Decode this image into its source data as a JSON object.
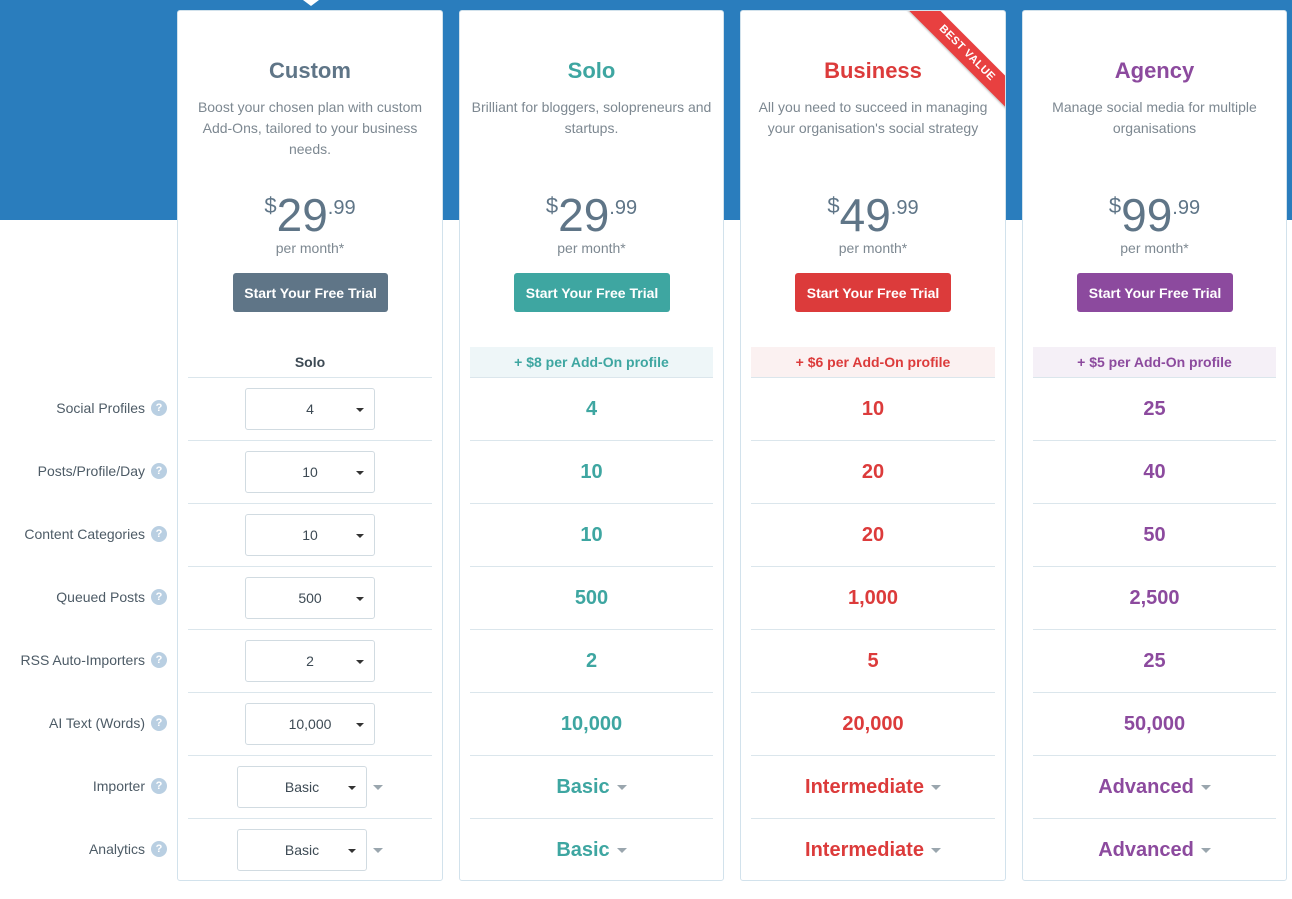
{
  "colors": {
    "band": "#2a7dbd",
    "custom": "#5f7587",
    "solo": "#3ea6a1",
    "business": "#dc3b3b",
    "agency": "#8c4a9e"
  },
  "feature_labels": [
    "Social Profiles",
    "Posts/Profile/Day",
    "Content Categories",
    "Queued Posts",
    "RSS Auto-Importers",
    "AI Text (Words)",
    "Importer",
    "Analytics"
  ],
  "help_icon_text": "?",
  "cta_label": "Start Your Free Trial",
  "per_month": "per month*",
  "currency": "$",
  "ribbon": "BEST VALUE",
  "plans": {
    "custom": {
      "name": "Custom",
      "desc": "Boost your chosen plan with custom Add-Ons, tailored to your business needs.",
      "price": "29",
      "cents": ".99",
      "base_plan": "Solo",
      "selects": [
        "4",
        "10",
        "10",
        "500",
        "2",
        "10,000",
        "Basic",
        "Basic"
      ]
    },
    "solo": {
      "name": "Solo",
      "desc": "Brilliant for bloggers, solopreneurs and startups.",
      "price": "29",
      "cents": ".99",
      "addon": "+ $8 per Add-On profile",
      "values": [
        "4",
        "10",
        "10",
        "500",
        "2",
        "10,000",
        "Basic",
        "Basic"
      ]
    },
    "business": {
      "name": "Business",
      "desc": "All you need to succeed in managing your organisation's social strategy",
      "price": "49",
      "cents": ".99",
      "addon": "+ $6 per Add-On profile",
      "values": [
        "10",
        "20",
        "20",
        "1,000",
        "5",
        "20,000",
        "Intermediate",
        "Intermediate"
      ]
    },
    "agency": {
      "name": "Agency",
      "desc": "Manage social media for multiple organisations",
      "price": "99",
      "cents": ".99",
      "addon": "+ $5 per Add-On profile",
      "values": [
        "25",
        "40",
        "50",
        "2,500",
        "25",
        "50,000",
        "Advanced",
        "Advanced"
      ]
    }
  }
}
